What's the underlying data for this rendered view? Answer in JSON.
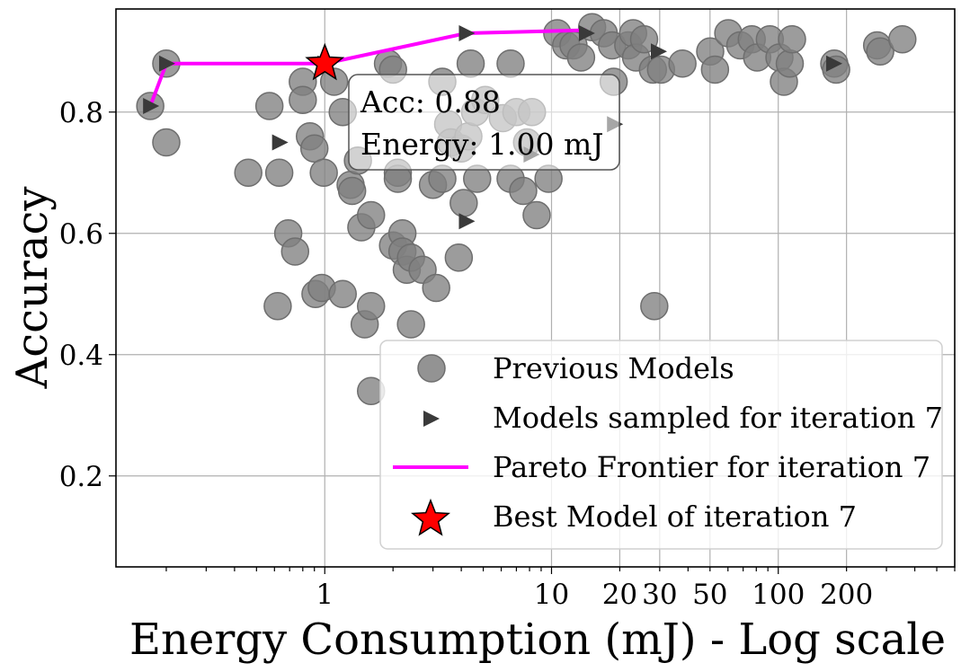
{
  "chart_data": {
    "type": "scatter",
    "title": "",
    "xlabel": "Energy Consumption (mJ) - Log scale",
    "ylabel": "Accuracy",
    "xscale": "log",
    "xlim": [
      0.12,
      600
    ],
    "ylim": [
      0.05,
      0.97
    ],
    "grid": true,
    "legend_location": "lower-right",
    "x_ticks": [
      {
        "value": 1,
        "label": "1"
      },
      {
        "value": 10,
        "label": "10"
      },
      {
        "value": 20,
        "label": "20"
      },
      {
        "value": 30,
        "label": "30"
      },
      {
        "value": 50,
        "label": "50"
      },
      {
        "value": 100,
        "label": "100"
      },
      {
        "value": 200,
        "label": "200"
      }
    ],
    "y_ticks": [
      {
        "value": 0.2,
        "label": "0.2"
      },
      {
        "value": 0.4,
        "label": "0.4"
      },
      {
        "value": 0.6,
        "label": "0.6"
      },
      {
        "value": 0.8,
        "label": "0.8"
      }
    ],
    "colors": {
      "previous": "#808080",
      "sampled": "#3a3a3a",
      "pareto": "#ff00ff",
      "best": "#ff0000",
      "grid": "#b0b0b0"
    },
    "series": [
      {
        "name": "Previous Models",
        "marker": "circle",
        "points": [
          [
            0.17,
            0.81
          ],
          [
            0.2,
            0.88
          ],
          [
            0.2,
            0.75
          ],
          [
            0.46,
            0.7
          ],
          [
            0.57,
            0.81
          ],
          [
            0.63,
            0.7
          ],
          [
            0.62,
            0.48
          ],
          [
            0.69,
            0.6
          ],
          [
            0.74,
            0.57
          ],
          [
            0.8,
            0.85
          ],
          [
            0.8,
            0.82
          ],
          [
            0.86,
            0.76
          ],
          [
            0.9,
            0.74
          ],
          [
            0.91,
            0.5
          ],
          [
            0.97,
            0.51
          ],
          [
            0.99,
            0.7
          ],
          [
            1.1,
            0.85
          ],
          [
            1.2,
            0.8
          ],
          [
            1.2,
            0.5
          ],
          [
            1.3,
            0.68
          ],
          [
            1.32,
            0.67
          ],
          [
            1.4,
            0.72
          ],
          [
            1.5,
            0.45
          ],
          [
            1.45,
            0.61
          ],
          [
            1.6,
            0.63
          ],
          [
            1.6,
            0.48
          ],
          [
            1.6,
            0.34
          ],
          [
            1.9,
            0.88
          ],
          [
            2.0,
            0.87
          ],
          [
            2.0,
            0.58
          ],
          [
            2.1,
            0.7
          ],
          [
            2.1,
            0.69
          ],
          [
            2.2,
            0.6
          ],
          [
            2.2,
            0.57
          ],
          [
            2.3,
            0.54
          ],
          [
            2.4,
            0.56
          ],
          [
            2.4,
            0.45
          ],
          [
            2.7,
            0.54
          ],
          [
            3.0,
            0.68
          ],
          [
            3.1,
            0.51
          ],
          [
            3.3,
            0.69
          ],
          [
            3.3,
            0.85
          ],
          [
            3.5,
            0.78
          ],
          [
            3.6,
            0.75
          ],
          [
            3.9,
            0.56
          ],
          [
            4.0,
            0.74
          ],
          [
            4.1,
            0.65
          ],
          [
            4.3,
            0.76
          ],
          [
            4.4,
            0.88
          ],
          [
            4.6,
            0.8
          ],
          [
            4.7,
            0.69
          ],
          [
            5.1,
            0.82
          ],
          [
            6.1,
            0.79
          ],
          [
            6.6,
            0.69
          ],
          [
            6.6,
            0.88
          ],
          [
            7.0,
            0.8
          ],
          [
            7.5,
            0.67
          ],
          [
            7.8,
            0.75
          ],
          [
            8.2,
            0.8
          ],
          [
            8.6,
            0.63
          ],
          [
            9.7,
            0.69
          ],
          [
            10.6,
            0.93
          ],
          [
            11.6,
            0.91
          ],
          [
            12.5,
            0.91
          ],
          [
            13.5,
            0.89
          ],
          [
            15.1,
            0.94
          ],
          [
            17.0,
            0.93
          ],
          [
            18.5,
            0.91
          ],
          [
            18.8,
            0.85
          ],
          [
            21.8,
            0.91
          ],
          [
            22.9,
            0.93
          ],
          [
            23.6,
            0.89
          ],
          [
            25.6,
            0.92
          ],
          [
            28.0,
            0.87
          ],
          [
            28.4,
            0.48
          ],
          [
            30.4,
            0.87
          ],
          [
            37.8,
            0.88
          ],
          [
            50.1,
            0.9
          ],
          [
            52.6,
            0.87
          ],
          [
            60.2,
            0.93
          ],
          [
            68.0,
            0.91
          ],
          [
            76.4,
            0.92
          ],
          [
            80.7,
            0.89
          ],
          [
            91.8,
            0.92
          ],
          [
            101.2,
            0.89
          ],
          [
            105.9,
            0.85
          ],
          [
            112.4,
            0.88
          ],
          [
            115.0,
            0.92
          ],
          [
            176.6,
            0.88
          ],
          [
            180.0,
            0.87
          ],
          [
            272.9,
            0.91
          ],
          [
            281.6,
            0.9
          ],
          [
            352.6,
            0.92
          ]
        ]
      },
      {
        "name": "Models sampled for iteration 7",
        "marker": "triangle-right",
        "points": [
          [
            0.17,
            0.81
          ],
          [
            0.2,
            0.88
          ],
          [
            0.63,
            0.75
          ],
          [
            1.0,
            0.88
          ],
          [
            4.2,
            0.93
          ],
          [
            4.2,
            0.62
          ],
          [
            8.1,
            0.73
          ],
          [
            14.2,
            0.93
          ],
          [
            18.9,
            0.78
          ],
          [
            29.5,
            0.9
          ],
          [
            175.0,
            0.88
          ]
        ]
      },
      {
        "name": "Pareto Frontier for iteration 7",
        "marker": "line",
        "points": [
          [
            0.17,
            0.81
          ],
          [
            0.2,
            0.88
          ],
          [
            1.0,
            0.88
          ],
          [
            4.2,
            0.93
          ],
          [
            14.2,
            0.935
          ]
        ]
      },
      {
        "name": "Best Model of iteration 7",
        "marker": "star",
        "points": [
          [
            1.0,
            0.88
          ]
        ]
      }
    ],
    "annotation": {
      "line1": "Acc: 0.88",
      "line2": "Energy: 1.00 mJ"
    }
  }
}
